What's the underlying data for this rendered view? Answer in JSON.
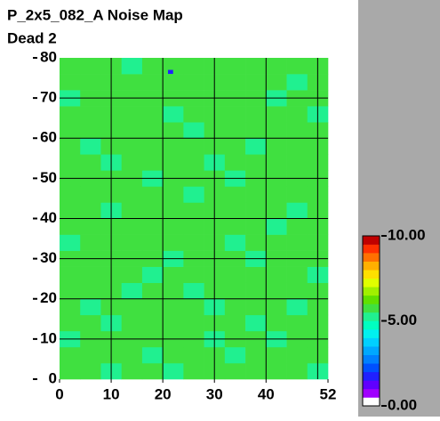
{
  "chart_data": {
    "type": "heatmap",
    "title": "P_2x5_082_A Noise Map",
    "subtitle": "Dead 2",
    "xlim": [
      0,
      52
    ],
    "ylim": [
      0,
      80
    ],
    "xticks": [
      0,
      10,
      20,
      30,
      40,
      52
    ],
    "yticks": [
      0,
      10,
      20,
      30,
      40,
      50,
      60,
      70,
      80
    ],
    "xgrid": [
      10,
      20,
      30,
      40,
      50
    ],
    "ygrid": [
      10,
      20,
      30,
      40,
      50,
      60,
      70
    ],
    "zlim": [
      0,
      10
    ],
    "colorbar_ticks": [
      {
        "value": 0,
        "label": "0.00"
      },
      {
        "value": 5,
        "label": "5.00"
      },
      {
        "value": 10,
        "label": "10.00"
      }
    ],
    "palette": [
      "#ffffff",
      "#a000ff",
      "#6000ff",
      "#2020ff",
      "#0050ff",
      "#0080ff",
      "#00a8ff",
      "#00d0ff",
      "#00f0f0",
      "#00ffc0",
      "#20f090",
      "#40e040",
      "#60e000",
      "#a0f000",
      "#e0ff00",
      "#ffe000",
      "#ffb000",
      "#ff7000",
      "#ff3000",
      "#c00000"
    ],
    "values": [
      [
        5.6,
        5.7,
        5.4,
        5.8,
        5.6,
        5.3,
        5.7,
        5.6,
        5.8,
        5.5,
        5.6,
        5.7,
        5.4
      ],
      [
        5.7,
        5.5,
        5.8,
        5.6,
        5.4,
        5.7,
        5.6,
        5.8,
        5.3,
        5.7,
        5.6,
        5.5,
        5.8
      ],
      [
        5.4,
        5.8,
        5.6,
        5.7,
        5.6,
        5.5,
        5.8,
        5.4,
        5.6,
        5.7,
        5.3,
        5.8,
        5.6
      ],
      [
        5.8,
        5.6,
        5.3,
        5.6,
        5.7,
        5.8,
        5.5,
        5.6,
        5.7,
        5.4,
        5.8,
        5.6,
        5.7
      ],
      [
        5.6,
        5.4,
        5.7,
        5.8,
        5.5,
        5.6,
        5.7,
        5.3,
        5.8,
        5.6,
        5.7,
        5.4,
        5.6
      ],
      [
        5.5,
        5.7,
        5.6,
        5.4,
        5.8,
        5.6,
        5.4,
        5.7,
        5.6,
        5.8,
        5.5,
        5.7,
        5.6
      ],
      [
        5.7,
        5.6,
        5.8,
        5.6,
        5.3,
        5.7,
        5.6,
        5.8,
        5.5,
        5.6,
        5.7,
        5.6,
        5.4
      ],
      [
        5.6,
        5.8,
        5.5,
        5.7,
        5.6,
        5.4,
        5.8,
        5.6,
        5.7,
        5.3,
        5.6,
        5.8,
        5.7
      ],
      [
        5.3,
        5.6,
        5.7,
        5.6,
        5.8,
        5.7,
        5.5,
        5.6,
        5.4,
        5.7,
        5.8,
        5.6,
        5.5
      ],
      [
        5.7,
        5.5,
        5.6,
        5.8,
        5.6,
        5.5,
        5.7,
        5.8,
        5.6,
        5.6,
        5.4,
        5.7,
        5.8
      ],
      [
        5.6,
        5.7,
        5.4,
        5.6,
        5.7,
        5.8,
        5.6,
        5.5,
        5.7,
        5.8,
        5.6,
        5.3,
        5.6
      ],
      [
        5.8,
        5.6,
        5.7,
        5.5,
        5.6,
        5.6,
        5.4,
        5.7,
        5.8,
        5.5,
        5.7,
        5.6,
        5.7
      ],
      [
        5.5,
        5.8,
        5.6,
        5.7,
        5.4,
        5.7,
        5.8,
        5.6,
        5.3,
        5.6,
        5.8,
        5.7,
        5.5
      ],
      [
        5.7,
        5.6,
        5.3,
        5.6,
        5.8,
        5.6,
        5.7,
        5.4,
        5.6,
        5.7,
        5.5,
        5.6,
        5.8
      ],
      [
        5.6,
        5.4,
        5.7,
        5.8,
        5.6,
        5.5,
        5.6,
        5.8,
        5.7,
        5.4,
        5.6,
        5.8,
        5.6
      ],
      [
        5.8,
        5.7,
        5.6,
        5.5,
        5.7,
        5.8,
        5.3,
        5.6,
        5.7,
        5.6,
        5.8,
        5.5,
        5.7
      ],
      [
        5.6,
        5.5,
        5.8,
        5.7,
        5.6,
        5.4,
        5.7,
        5.6,
        5.5,
        5.8,
        5.6,
        5.7,
        5.4
      ],
      [
        5.4,
        5.7,
        5.6,
        5.8,
        5.5,
        5.7,
        5.6,
        5.7,
        5.8,
        5.6,
        5.3,
        5.6,
        5.7
      ],
      [
        5.7,
        5.6,
        5.5,
        5.6,
        5.8,
        5.6,
        5.7,
        5.5,
        5.6,
        5.7,
        5.8,
        5.4,
        5.6
      ],
      [
        5.6,
        5.8,
        5.7,
        5.4,
        5.6,
        5.7,
        5.5,
        5.8,
        5.6,
        5.5,
        5.7,
        5.8,
        5.6
      ]
    ],
    "dead": [
      {
        "x": 21,
        "y": 76,
        "value": 1.5
      }
    ]
  }
}
